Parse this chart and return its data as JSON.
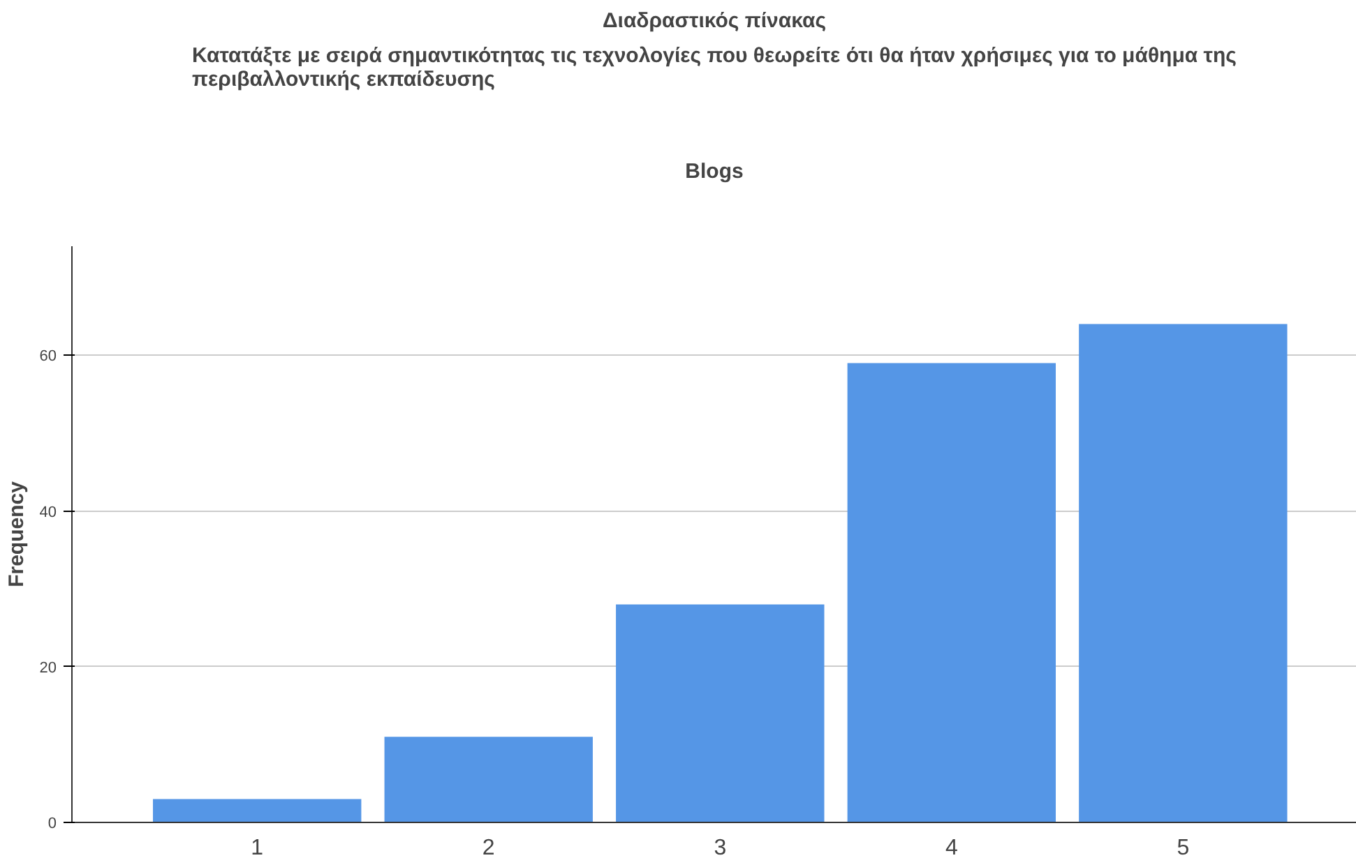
{
  "chart_data": {
    "type": "bar",
    "title": "Blogs",
    "subtitle": "Κατατάξτε με σειρά σημαντικότητας τις τεχνολογίες που θεωρείτε ότι θα ήταν χρήσιμες για το μάθημα της περιβαλλοντικής εκπαίδευσης",
    "annotations": [
      "Διαδραστικός πίνακας"
    ],
    "ylabel": "Frequency",
    "categories": [
      "1",
      "2",
      "3",
      "4",
      "5"
    ],
    "values": [
      3,
      11,
      28,
      59,
      64
    ],
    "color": "#5596e6",
    "ylim": [
      0,
      74
    ],
    "yticks": [
      0,
      20,
      40,
      60
    ],
    "grid": "y"
  }
}
